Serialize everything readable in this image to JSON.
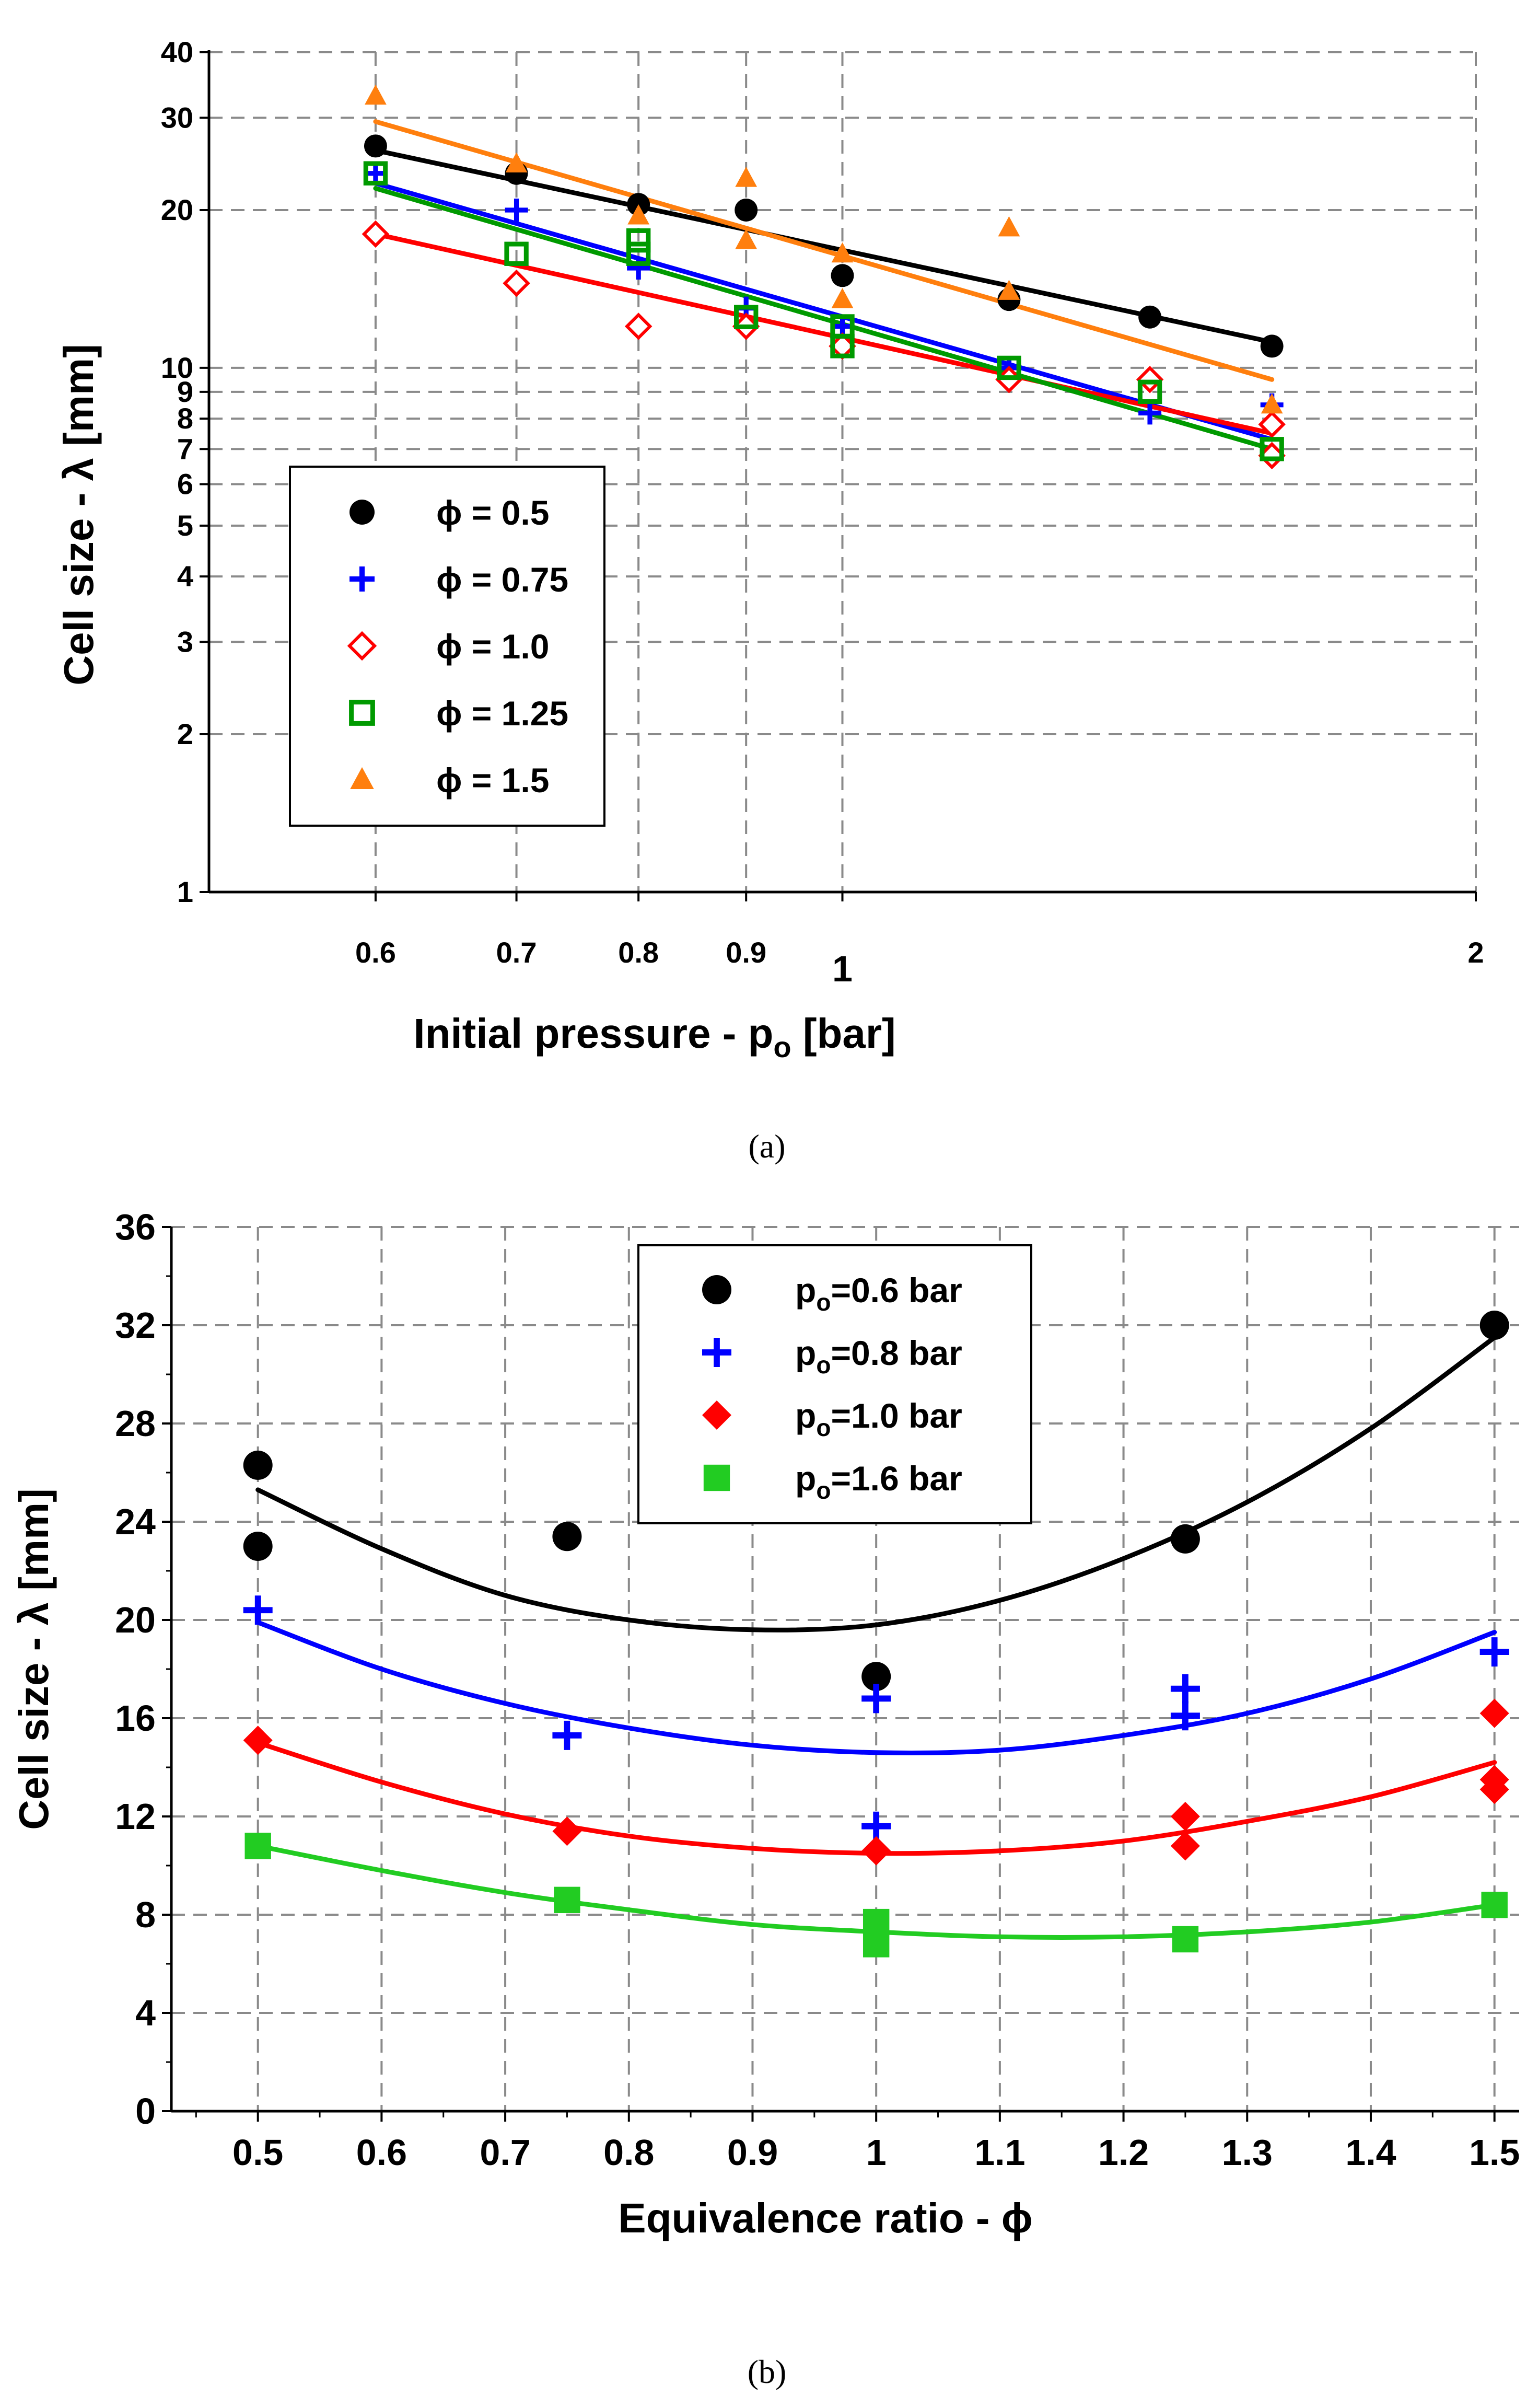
{
  "chart_data": [
    {
      "type": "scatter",
      "panel_caption": "(a)",
      "xlabel": "Initial pressure - p",
      "xlabel_sub": "o",
      "xlabel_unit": " [bar]",
      "ylabel": "Cell size - λ [mm]",
      "xscale": "log",
      "yscale": "log",
      "xlim": [
        0.5,
        2
      ],
      "ylim": [
        1,
        40
      ],
      "xticks": [
        {
          "v": 0.6,
          "label": "0.6"
        },
        {
          "v": 0.7,
          "label": "0.7"
        },
        {
          "v": 0.8,
          "label": "0.8"
        },
        {
          "v": 0.9,
          "label": "0.9"
        },
        {
          "v": 1,
          "label": "1"
        },
        {
          "v": 2,
          "label": "2"
        }
      ],
      "yticks": [
        {
          "v": 1,
          "label": "1"
        },
        {
          "v": 2,
          "label": "2"
        },
        {
          "v": 3,
          "label": "3"
        },
        {
          "v": 4,
          "label": "4"
        },
        {
          "v": 5,
          "label": "5"
        },
        {
          "v": 6,
          "label": "6"
        },
        {
          "v": 7,
          "label": "7"
        },
        {
          "v": 8,
          "label": "8"
        },
        {
          "v": 9,
          "label": "9"
        },
        {
          "v": 10,
          "label": "10"
        },
        {
          "v": 20,
          "label": "20"
        },
        {
          "v": 30,
          "label": "30"
        },
        {
          "v": 40,
          "label": "40"
        }
      ],
      "legend_position": "left",
      "series": [
        {
          "name": "ϕ = 0.5",
          "marker": "circle",
          "color": "#000000",
          "x": [
            0.6,
            0.7,
            0.8,
            0.9,
            1.0,
            1.2,
            1.4,
            1.6
          ],
          "y": [
            26.5,
            23.5,
            20.5,
            20,
            15,
            13.5,
            12.5,
            11
          ],
          "fit": {
            "x0": 0.6,
            "y0": 26,
            "x1": 1.6,
            "y1": 11.2
          }
        },
        {
          "name": "ϕ = 0.75",
          "marker": "plus",
          "color": "#0000ff",
          "x": [
            0.6,
            0.7,
            0.8,
            0.9,
            1.0,
            1.0,
            1.2,
            1.4,
            1.6
          ],
          "y": [
            23.5,
            20,
            15.5,
            13,
            12,
            11,
            10,
            8.2,
            8.5
          ],
          "fit": {
            "x0": 0.6,
            "y0": 22.5,
            "x1": 1.6,
            "y1": 7.3
          }
        },
        {
          "name": "ϕ = 1.0",
          "marker": "diamond-open",
          "color": "#ff0000",
          "x": [
            0.6,
            0.7,
            0.8,
            0.9,
            1.0,
            1.2,
            1.4,
            1.6,
            1.6
          ],
          "y": [
            18,
            14.5,
            12,
            12,
            11,
            9.5,
            9.5,
            7.8,
            6.8
          ],
          "fit": {
            "x0": 0.6,
            "y0": 18,
            "x1": 1.6,
            "y1": 7.5
          }
        },
        {
          "name": "ϕ = 1.25",
          "marker": "square-open",
          "color": "#009a00",
          "x": [
            0.6,
            0.7,
            0.8,
            0.8,
            0.9,
            1.0,
            1.0,
            1.2,
            1.4,
            1.6
          ],
          "y": [
            23.5,
            16.5,
            17.5,
            16.5,
            12.5,
            12,
            11,
            10,
            9,
            7
          ],
          "fit": {
            "x0": 0.6,
            "y0": 22,
            "x1": 1.6,
            "y1": 7
          }
        },
        {
          "name": "ϕ = 1.5",
          "marker": "triangle",
          "color": "#ff7f0e",
          "x": [
            0.6,
            0.7,
            0.8,
            0.9,
            0.9,
            1.0,
            1.0,
            1.2,
            1.2,
            1.6
          ],
          "y": [
            33,
            24.5,
            19.5,
            23,
            17.5,
            16.5,
            13.5,
            18.5,
            14,
            8.5
          ],
          "fit": {
            "x0": 0.6,
            "y0": 29.5,
            "x1": 1.6,
            "y1": 9.5
          }
        }
      ]
    },
    {
      "type": "scatter",
      "panel_caption": "(b)",
      "xlabel": "Equivalence ratio - ϕ",
      "ylabel": "Cell size - λ [mm]",
      "xlim": [
        0.43,
        1.52
      ],
      "ylim": [
        0,
        36
      ],
      "xticks": [
        {
          "v": 0.5,
          "label": "0.5"
        },
        {
          "v": 0.6,
          "label": "0.6"
        },
        {
          "v": 0.7,
          "label": "0.7"
        },
        {
          "v": 0.8,
          "label": "0.8"
        },
        {
          "v": 0.9,
          "label": "0.9"
        },
        {
          "v": 1.0,
          "label": "1"
        },
        {
          "v": 1.1,
          "label": "1.1"
        },
        {
          "v": 1.2,
          "label": "1.2"
        },
        {
          "v": 1.3,
          "label": "1.3"
        },
        {
          "v": 1.4,
          "label": "1.4"
        },
        {
          "v": 1.5,
          "label": "1.5"
        }
      ],
      "yticks": [
        {
          "v": 0,
          "label": "0"
        },
        {
          "v": 4,
          "label": "4"
        },
        {
          "v": 8,
          "label": "8"
        },
        {
          "v": 12,
          "label": "12"
        },
        {
          "v": 16,
          "label": "16"
        },
        {
          "v": 20,
          "label": "20"
        },
        {
          "v": 24,
          "label": "24"
        },
        {
          "v": 28,
          "label": "28"
        },
        {
          "v": 32,
          "label": "32"
        },
        {
          "v": 36,
          "label": "36"
        }
      ],
      "legend_position": "top-center",
      "series": [
        {
          "name": "p",
          "sub": "o",
          "suffix": "=0.6 bar",
          "marker": "circle",
          "color": "#000000",
          "x": [
            0.5,
            0.5,
            0.75,
            1.0,
            1.25,
            1.5
          ],
          "y": [
            26.3,
            23,
            23.4,
            17.7,
            23.3,
            32
          ],
          "fit": {
            "x": [
              0.5,
              0.6,
              0.7,
              0.8,
              0.9,
              1.0,
              1.1,
              1.2,
              1.3,
              1.4,
              1.5
            ],
            "y": [
              25.3,
              22.9,
              21.0,
              20.0,
              19.6,
              19.8,
              20.8,
              22.5,
              24.8,
              27.8,
              31.5
            ]
          }
        },
        {
          "name": "p",
          "sub": "o",
          "suffix": "=0.8 bar",
          "marker": "plus",
          "color": "#0000ff",
          "x": [
            0.5,
            0.75,
            1.0,
            1.0,
            1.25,
            1.25,
            1.5
          ],
          "y": [
            20.4,
            15.3,
            16.8,
            11.6,
            17.2,
            16.1,
            18.7
          ],
          "fit": {
            "x": [
              0.5,
              0.6,
              0.7,
              0.8,
              0.9,
              1.0,
              1.1,
              1.2,
              1.3,
              1.4,
              1.5
            ],
            "y": [
              19.9,
              18.0,
              16.6,
              15.6,
              14.9,
              14.6,
              14.7,
              15.3,
              16.2,
              17.6,
              19.5
            ]
          }
        },
        {
          "name": "p",
          "sub": "o",
          "suffix": "=1.0 bar",
          "marker": "diamond",
          "color": "#ff0000",
          "x": [
            0.5,
            0.75,
            1.0,
            1.25,
            1.25,
            1.5,
            1.5,
            1.5
          ],
          "y": [
            15.1,
            11.4,
            10.6,
            12.0,
            10.8,
            16.2,
            13.5,
            13.1
          ],
          "fit": {
            "x": [
              0.5,
              0.6,
              0.7,
              0.8,
              0.9,
              1.0,
              1.1,
              1.2,
              1.3,
              1.4,
              1.5
            ],
            "y": [
              15.0,
              13.4,
              12.1,
              11.2,
              10.7,
              10.5,
              10.6,
              11.0,
              11.8,
              12.8,
              14.2
            ]
          }
        },
        {
          "name": "p",
          "sub": "o",
          "suffix": "=1.6 bar",
          "marker": "square",
          "color": "#22cc22",
          "x": [
            0.5,
            0.75,
            1.0,
            1.0,
            1.25,
            1.5
          ],
          "y": [
            10.8,
            8.6,
            7.7,
            6.8,
            7.0,
            8.4
          ],
          "fit": {
            "x": [
              0.5,
              0.6,
              0.7,
              0.8,
              0.9,
              1.0,
              1.1,
              1.2,
              1.3,
              1.4,
              1.5
            ],
            "y": [
              10.8,
              9.8,
              8.9,
              8.2,
              7.6,
              7.3,
              7.1,
              7.1,
              7.3,
              7.7,
              8.4
            ]
          }
        }
      ]
    }
  ]
}
